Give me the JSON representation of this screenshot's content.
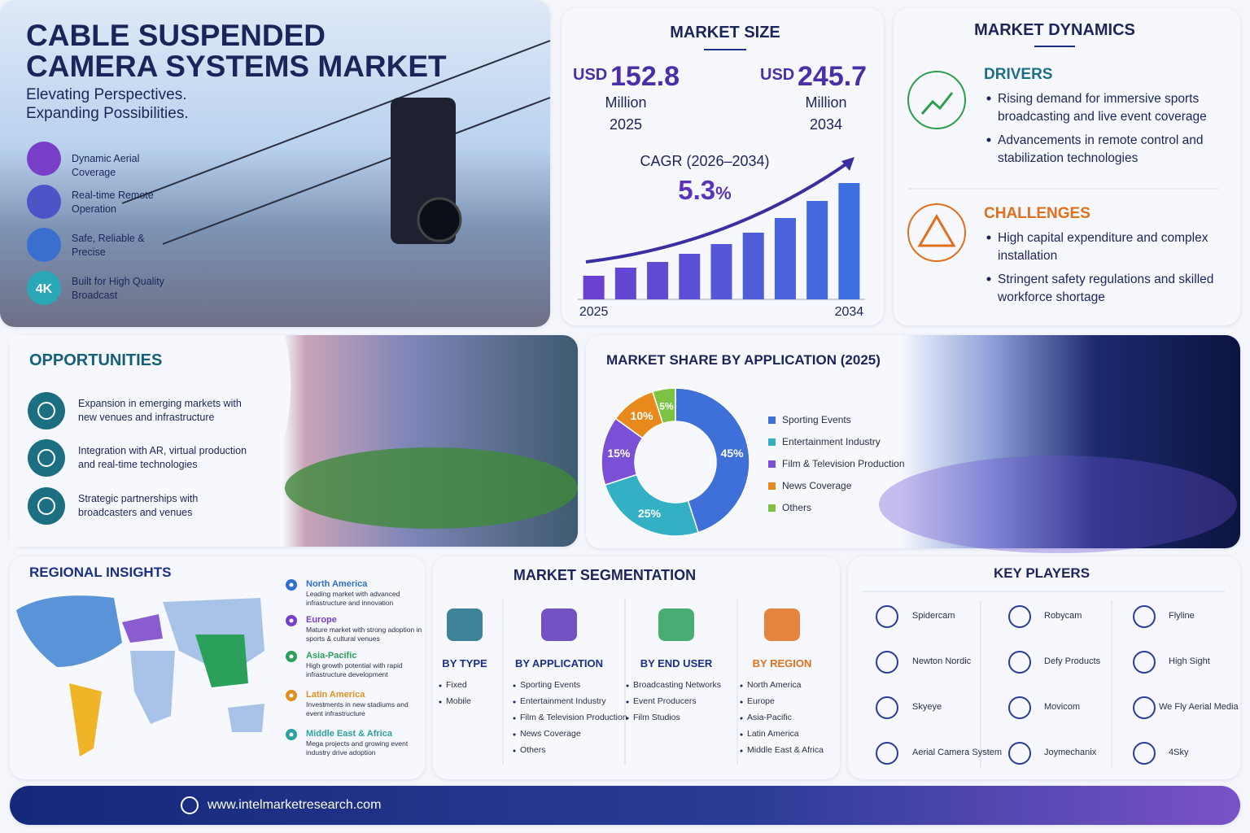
{
  "hero": {
    "title_line1": "CABLE SUSPENDED",
    "title_line2": "CAMERA SYSTEMS MARKET",
    "tagline_line1": "Elevating Perspectives.",
    "tagline_line2": "Expanding Possibilities.",
    "features": [
      "Dynamic Aerial Coverage",
      "Real-time Remote Operation",
      "Safe, Reliable & Precise",
      "Built for High Quality Broadcast"
    ],
    "badge": "4K"
  },
  "market_size": {
    "title": "MARKET SIZE",
    "start": {
      "currency": "USD",
      "value": 152.8,
      "unit": "Million",
      "year": "2025"
    },
    "end": {
      "currency": "USD",
      "value": 245.7,
      "unit": "Million",
      "year": "2034"
    },
    "cagr_label": "CAGR (2026–2034)",
    "cagr_value": 5.3,
    "cagr_unit": "%"
  },
  "market_dynamics": {
    "title": "MARKET DYNAMICS",
    "drivers": {
      "heading": "DRIVERS",
      "items": [
        "Rising demand for immersive sports broadcasting and live event coverage",
        "Advancements in remote control and stabilization technologies"
      ]
    },
    "challenges": {
      "heading": "CHALLENGES",
      "items": [
        "High capital expenditure and complex installation",
        "Stringent safety regulations and skilled workforce shortage"
      ]
    }
  },
  "opportunities": {
    "title": "OPPORTUNITIES",
    "items": [
      "Expansion in emerging markets with new venues and infrastructure",
      "Integration with AR, virtual production and real-time technologies",
      "Strategic partnerships with broadcasters and venues"
    ]
  },
  "regional_insights": {
    "title": "REGIONAL INSIGHTS",
    "regions": [
      {
        "name": "North America",
        "description": "Leading market with advanced infrastructure and innovation",
        "color": "#2f6fd0"
      },
      {
        "name": "Europe",
        "description": "Mature market with strong adoption in sports & cultural venues",
        "color": "#7a3fc8"
      },
      {
        "name": "Asia-Pacific",
        "description": "High growth potential with rapid infrastructure development",
        "color": "#2aa05a"
      },
      {
        "name": "Latin America",
        "description": "Investments in new stadiums and event infrastructure",
        "color": "#e09020"
      },
      {
        "name": "Middle East & Africa",
        "description": "Mega projects and growing event industry drive adoption",
        "color": "#2aa0a0"
      }
    ]
  },
  "segmentation": {
    "title": "MARKET SEGMENTATION",
    "columns": [
      {
        "heading": "BY TYPE",
        "items": [
          "Fixed",
          "Mobile"
        ]
      },
      {
        "heading": "BY APPLICATION",
        "items": [
          "Sporting Events",
          "Entertainment Industry",
          "Film & Television Production",
          "News Coverage",
          "Others"
        ]
      },
      {
        "heading": "BY END USER",
        "items": [
          "Broadcasting Networks",
          "Event Producers",
          "Film Studios"
        ]
      },
      {
        "heading": "BY REGION",
        "items": [
          "North America",
          "Europe",
          "Asia-Pacific",
          "Latin America",
          "Middle East & Africa"
        ]
      }
    ]
  },
  "key_players": {
    "title": "KEY PLAYERS",
    "players": [
      "Spidercam",
      "Robycam",
      "Flyline",
      "Newton Nordic",
      "Defy Products",
      "High Sight",
      "Skyeye",
      "Movicom",
      "We Fly Aerial Media",
      "Aerial Camera System",
      "Joymechanix",
      "4Sky"
    ]
  },
  "footer": {
    "url": "www.intelmarketresearch.com"
  },
  "chart_data": [
    {
      "type": "bar",
      "categories": [
        "2025",
        null,
        null,
        null,
        null,
        null,
        null,
        null,
        "2034"
      ],
      "values": [
        29,
        39,
        46,
        56,
        68,
        82,
        100,
        121,
        143
      ],
      "ylim": [
        0,
        150
      ],
      "color_start": "#6b3fd1",
      "color_end": "#3d6ee0"
    },
    {
      "type": "donut",
      "title": "MARKET SHARE BY APPLICATION (2025)",
      "categories": [
        "Sporting Events",
        "Entertainment Industry",
        "Film & Television Production",
        "News Coverage",
        "Others"
      ],
      "values": [
        45,
        25,
        15,
        10,
        5
      ],
      "value_labels": [
        "45%",
        "25%",
        "15%",
        "10%",
        "5%"
      ],
      "colors": [
        "#3f6fd8",
        "#34b0c4",
        "#7b4fd6",
        "#e8891c",
        "#7cc343"
      ]
    }
  ]
}
